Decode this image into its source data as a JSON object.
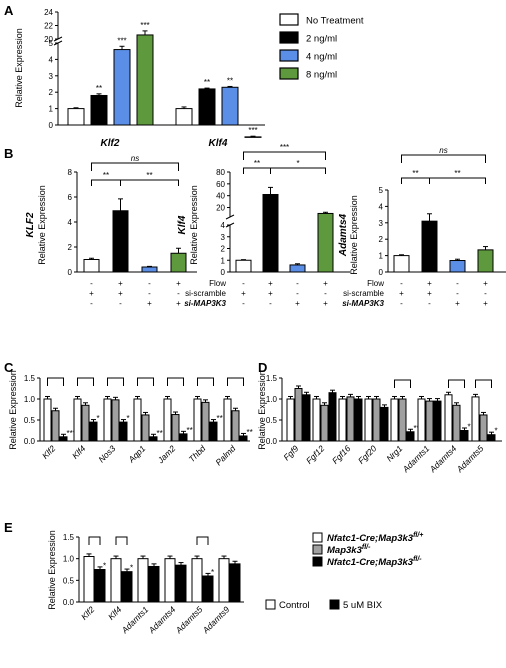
{
  "colors": {
    "white": "#ffffff",
    "black": "#000000",
    "blue": "#5b8ee6",
    "green": "#5e9a3d",
    "gray": "#a0a0a0"
  },
  "panels": {
    "A": "A",
    "B": "B",
    "C": "C",
    "D": "D",
    "E": "E"
  },
  "chart_data": [
    {
      "id": "A",
      "type": "bar",
      "categories": [
        "Klf2",
        "Klf4"
      ],
      "ylabel": "Relative Expression",
      "yticks": [
        "0",
        "1",
        "2",
        "3",
        "4",
        "5",
        "20",
        "22",
        "24"
      ],
      "series": [
        {
          "name": "No Treatment",
          "values": [
            1.0,
            1.0
          ],
          "errors": [
            0.05,
            0.1
          ]
        },
        {
          "name": "2 ng/ml",
          "values": [
            1.8,
            2.2
          ],
          "errors": [
            0.1,
            0.05
          ]
        },
        {
          "name": "4 ng/ml",
          "values": [
            4.6,
            2.3
          ],
          "errors": [
            0.2,
            0.05
          ]
        },
        {
          "name": "8 ng/ml",
          "values": [
            20.6,
            5.5
          ],
          "errors": [
            0.6,
            0.1
          ]
        }
      ],
      "significance": [
        [
          "",
          "**",
          "***",
          "***"
        ],
        [
          "",
          "**",
          "**",
          "***"
        ]
      ]
    },
    {
      "id": "B1",
      "type": "bar",
      "ylabel": "Relative Expression",
      "gene": "KLF2",
      "yticks": [
        "0",
        "2",
        "4",
        "6",
        "8"
      ],
      "values": [
        1.0,
        4.9,
        0.4,
        1.5
      ],
      "errors": [
        0.1,
        0.95,
        0.05,
        0.4
      ],
      "brackets": [
        [
          "ns",
          ""
        ],
        [
          "**",
          "**"
        ]
      ]
    },
    {
      "id": "B2",
      "type": "bar",
      "ylabel": "Relative Expression",
      "gene": "Klf4",
      "yticks": [
        "0",
        "1",
        "2",
        "3",
        "4",
        "20",
        "40",
        "60",
        "80"
      ],
      "values": [
        1.0,
        42,
        0.6,
        10
      ],
      "errors": [
        0.05,
        12,
        0.1,
        2.0
      ],
      "brackets": [
        [
          "***"
        ],
        [
          "**",
          "*"
        ]
      ]
    },
    {
      "id": "B3",
      "type": "bar",
      "ylabel": "Relative Expression",
      "gene": "Adamts4",
      "yticks": [
        "0",
        "1",
        "2",
        "3",
        "4",
        "5"
      ],
      "values": [
        1.0,
        3.1,
        0.7,
        1.35
      ],
      "errors": [
        0.05,
        0.45,
        0.08,
        0.2
      ],
      "brackets": [
        [
          "ns"
        ],
        [
          "**",
          "**"
        ]
      ]
    },
    {
      "id": "C",
      "type": "bar",
      "ylabel": "Relative Expression",
      "yticks": [
        "0.0",
        "0.5",
        "1.0",
        "1.5"
      ],
      "categories": [
        "Klf2",
        "Klf4",
        "Nos3",
        "Aqp1",
        "Jam2",
        "Thbd",
        "Palmd"
      ],
      "series": [
        {
          "name": "Nfatc1-Cre;Map3k3 fl/+",
          "values": [
            1.0,
            1.0,
            1.0,
            1.0,
            1.0,
            1.0,
            1.0
          ]
        },
        {
          "name": "Map3k3 fl/-",
          "values": [
            0.72,
            0.85,
            0.98,
            0.62,
            0.63,
            0.92,
            0.72
          ]
        },
        {
          "name": "Nfatc1-Cre;Map3k3 fl/-",
          "values": [
            0.1,
            0.45,
            0.45,
            0.1,
            0.17,
            0.45,
            0.12
          ]
        }
      ],
      "significance": [
        "***",
        "*",
        "*",
        "**",
        "**",
        "**",
        "**"
      ]
    },
    {
      "id": "D",
      "type": "bar",
      "ylabel": "Relative Expression",
      "yticks": [
        "0.0",
        "0.5",
        "1.0",
        "1.5"
      ],
      "categories": [
        "Fgf9",
        "Fgf12",
        "Fgf16",
        "Fgf20",
        "Nrg1",
        "Adamts1",
        "Adamts4",
        "Adamts5"
      ],
      "series": [
        {
          "name": "Nfatc1-Cre;Map3k3 fl/+",
          "values": [
            1.0,
            1.0,
            1.0,
            1.0,
            1.0,
            1.0,
            1.1,
            1.05
          ]
        },
        {
          "name": "Map3k3 fl/-",
          "values": [
            1.25,
            0.85,
            1.05,
            1.0,
            1.0,
            0.95,
            0.85,
            0.62
          ]
        },
        {
          "name": "Nfatc1-Cre;Map3k3 fl/-",
          "values": [
            1.1,
            1.15,
            1.0,
            0.8,
            0.22,
            0.95,
            0.25,
            0.15
          ]
        }
      ],
      "significance": [
        "",
        "",
        "",
        "",
        "***",
        "",
        "*",
        "*"
      ]
    },
    {
      "id": "E",
      "type": "bar",
      "ylabel": "Relative Expression",
      "yticks": [
        "0.0",
        "0.5",
        "1.0",
        "1.5"
      ],
      "categories": [
        "Klf2",
        "Klf4",
        "Adamts1",
        "Adamts4",
        "Adamts5",
        "Adamts9"
      ],
      "series": [
        {
          "name": "Control",
          "values": [
            1.05,
            1.0,
            1.0,
            1.0,
            1.0,
            1.0
          ]
        },
        {
          "name": "5 uM BIX",
          "values": [
            0.75,
            0.7,
            0.82,
            0.85,
            0.6,
            0.88
          ]
        }
      ],
      "significance": [
        "*",
        "*",
        "",
        "",
        "*",
        ""
      ]
    }
  ],
  "legend_A": [
    "No Treatment",
    "2 ng/ml",
    "4 ng/ml",
    "8 ng/ml"
  ],
  "legend_D": {
    "items": [
      {
        "prefix": "Nfatc1-Cre;Map3k3",
        "sup": "fl/+"
      },
      {
        "prefix": "Map3k3",
        "sup": "fl/-"
      },
      {
        "prefix": "Nfatc1-Cre;Map3k3",
        "sup": "fl/-"
      }
    ]
  },
  "legend_E": [
    "Control",
    "5 uM BIX"
  ],
  "table_B": {
    "row1": "Flow",
    "row2": "si-scramble",
    "row3": "si-MAP3K3",
    "flow": [
      "-",
      "+",
      "-",
      "+"
    ],
    "scramble": [
      "+",
      "+",
      "-",
      "-"
    ],
    "map3k3": [
      "-",
      "-",
      "+",
      "+"
    ]
  }
}
